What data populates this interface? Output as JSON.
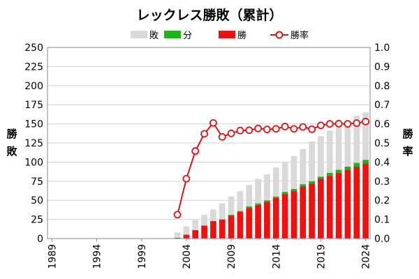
{
  "chart_data": {
    "type": "bar+line",
    "title": "レックレス勝敗（累計）",
    "left_axis_title_lines": [
      "勝",
      "敗"
    ],
    "right_axis_title_lines": [
      "勝",
      "率"
    ],
    "legend": [
      "敗",
      "分",
      "勝",
      "勝率"
    ],
    "colors": {
      "loss": "#d9d9d9",
      "draw": "#1db31d",
      "win": "#ee1111",
      "rate": "#dd1111"
    },
    "ylim_left": [
      0,
      250
    ],
    "ylim_right": [
      0,
      1.0
    ],
    "y_left_ticks": [
      "0",
      "25",
      "50",
      "75",
      "100",
      "125",
      "150",
      "175",
      "200",
      "225",
      "250"
    ],
    "y_right_ticks": [
      "0.0",
      "0.1",
      "0.2",
      "0.3",
      "0.4",
      "0.5",
      "0.6",
      "0.7",
      "0.8",
      "0.9",
      "1.0"
    ],
    "x_tick_labels": [
      "1989",
      "1994",
      "1999",
      "2004",
      "2009",
      "2014",
      "2019",
      "2024"
    ],
    "x": [
      1989,
      1990,
      1991,
      1992,
      1993,
      1994,
      1995,
      1996,
      1997,
      1998,
      1999,
      2000,
      2001,
      2002,
      2003,
      2004,
      2005,
      2006,
      2007,
      2008,
      2009,
      2010,
      2011,
      2012,
      2013,
      2014,
      2015,
      2016,
      2017,
      2018,
      2019,
      2020,
      2021,
      2022,
      2023,
      2024
    ],
    "series": [
      {
        "name": "勝",
        "values": [
          0,
          0,
          0,
          0,
          0,
          0,
          0,
          0,
          0,
          0,
          0,
          0,
          0,
          0,
          1,
          5,
          11,
          17,
          23,
          25,
          30,
          35,
          40,
          44,
          48,
          53,
          58,
          62,
          68,
          72,
          78,
          82,
          86,
          90,
          94,
          98
        ]
      },
      {
        "name": "分",
        "values": [
          0,
          0,
          0,
          0,
          0,
          0,
          0,
          0,
          0,
          0,
          0,
          0,
          0,
          0,
          0,
          0,
          0,
          0,
          0,
          0,
          1,
          1,
          2,
          2,
          2,
          2,
          3,
          3,
          3,
          3,
          3,
          4,
          4,
          4,
          5,
          5
        ]
      },
      {
        "name": "敗",
        "values": [
          0,
          0,
          0,
          0,
          0,
          0,
          0,
          0,
          0,
          0,
          0,
          0,
          0,
          0,
          7,
          11,
          13,
          14,
          15,
          21,
          24,
          26,
          28,
          32,
          34,
          38,
          39,
          43,
          46,
          52,
          53,
          55,
          57,
          61,
          62,
          62
        ]
      },
      {
        "name": "勝率",
        "values": [
          null,
          null,
          null,
          null,
          null,
          null,
          null,
          null,
          null,
          null,
          null,
          null,
          null,
          null,
          0.125,
          0.313,
          0.458,
          0.548,
          0.605,
          0.532,
          0.55,
          0.565,
          0.567,
          0.576,
          0.571,
          0.574,
          0.586,
          0.574,
          0.584,
          0.572,
          0.592,
          0.6,
          0.601,
          0.6,
          0.604,
          0.612
        ]
      }
    ]
  }
}
